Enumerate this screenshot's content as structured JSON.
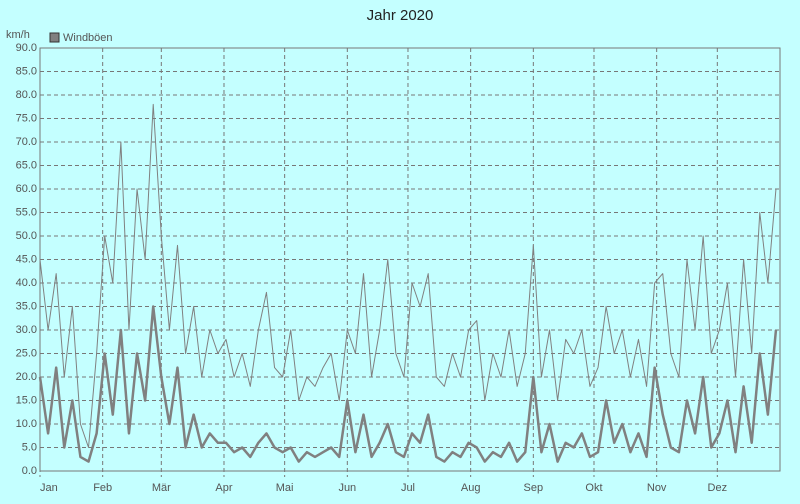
{
  "chart_data": {
    "type": "line",
    "title": "Jahr 2020",
    "y_label": "km/h",
    "x": [
      1,
      5,
      9,
      13,
      17,
      21,
      25,
      29,
      33,
      37,
      41,
      45,
      49,
      53,
      57,
      61,
      65,
      69,
      73,
      77,
      81,
      85,
      89,
      93,
      97,
      101,
      105,
      109,
      113,
      117,
      121,
      125,
      129,
      133,
      137,
      141,
      145,
      149,
      153,
      157,
      161,
      165,
      169,
      173,
      177,
      181,
      185,
      189,
      193,
      197,
      201,
      205,
      209,
      213,
      217,
      221,
      225,
      229,
      233,
      237,
      241,
      245,
      249,
      253,
      257,
      261,
      265,
      269,
      273,
      277,
      281,
      285,
      289,
      293,
      297,
      301,
      305,
      309,
      313,
      317,
      321,
      325,
      329,
      333,
      337,
      341,
      345,
      349,
      353,
      357,
      361,
      365
    ],
    "series": [
      {
        "name": "Windböen",
        "color": "#808080",
        "width": 1,
        "values": [
          45,
          30,
          42,
          20,
          35,
          10,
          5,
          25,
          50,
          40,
          70,
          30,
          60,
          45,
          78,
          50,
          30,
          48,
          25,
          35,
          20,
          30,
          25,
          28,
          20,
          25,
          18,
          30,
          38,
          22,
          20,
          30,
          15,
          20,
          18,
          22,
          25,
          15,
          30,
          25,
          42,
          20,
          30,
          45,
          25,
          20,
          40,
          35,
          42,
          20,
          18,
          25,
          20,
          30,
          32,
          15,
          25,
          20,
          30,
          18,
          25,
          48,
          20,
          30,
          15,
          28,
          25,
          30,
          18,
          22,
          35,
          25,
          30,
          20,
          28,
          18,
          40,
          42,
          25,
          20,
          45,
          30,
          50,
          25,
          30,
          40,
          20,
          45,
          25,
          55,
          40,
          60
        ]
      },
      {
        "color": "#808080",
        "width": 2.5,
        "values": [
          20,
          8,
          22,
          5,
          15,
          3,
          2,
          8,
          25,
          12,
          30,
          8,
          25,
          15,
          35,
          20,
          10,
          22,
          5,
          12,
          5,
          8,
          6,
          6,
          4,
          5,
          3,
          6,
          8,
          5,
          4,
          5,
          2,
          4,
          3,
          4,
          5,
          3,
          15,
          4,
          12,
          3,
          6,
          10,
          4,
          3,
          8,
          6,
          12,
          3,
          2,
          4,
          3,
          6,
          5,
          2,
          4,
          3,
          6,
          2,
          4,
          20,
          4,
          10,
          2,
          6,
          5,
          8,
          3,
          4,
          15,
          6,
          10,
          4,
          8,
          3,
          22,
          12,
          5,
          4,
          15,
          8,
          20,
          5,
          8,
          15,
          4,
          18,
          6,
          25,
          12,
          30
        ]
      }
    ],
    "xlim": [
      1,
      367
    ],
    "xticks": [
      {
        "value": 1,
        "label": "Jan"
      },
      {
        "value": 32,
        "label": "Feb"
      },
      {
        "value": 61,
        "label": "Mär"
      },
      {
        "value": 92,
        "label": "Apr"
      },
      {
        "value": 122,
        "label": "Mai"
      },
      {
        "value": 153,
        "label": "Jun"
      },
      {
        "value": 183,
        "label": "Jul"
      },
      {
        "value": 214,
        "label": "Aug"
      },
      {
        "value": 245,
        "label": "Sep"
      },
      {
        "value": 275,
        "label": "Okt"
      },
      {
        "value": 306,
        "label": "Nov"
      },
      {
        "value": 336,
        "label": "Dez"
      }
    ],
    "ylim": [
      0,
      90
    ],
    "yticks": [
      {
        "value": 0,
        "label": "0.0"
      },
      {
        "value": 5,
        "label": "5.0"
      },
      {
        "value": 10,
        "label": "10.0"
      },
      {
        "value": 15,
        "label": "15.0"
      },
      {
        "value": 20,
        "label": "20.0"
      },
      {
        "value": 25,
        "label": "25.0"
      },
      {
        "value": 30,
        "label": "30.0"
      },
      {
        "value": 35,
        "label": "35.0"
      },
      {
        "value": 40,
        "label": "40.0"
      },
      {
        "value": 45,
        "label": "45.0"
      },
      {
        "value": 50,
        "label": "50.0"
      },
      {
        "value": 55,
        "label": "55.0"
      },
      {
        "value": 60,
        "label": "60.0"
      },
      {
        "value": 65,
        "label": "65.0"
      },
      {
        "value": 70,
        "label": "70.0"
      },
      {
        "value": 75,
        "label": "75.0"
      },
      {
        "value": 80,
        "label": "80.0"
      },
      {
        "value": 85,
        "label": "85.0"
      },
      {
        "value": 90,
        "label": "90.0"
      }
    ],
    "grid": true,
    "background": "#c4ffff"
  }
}
